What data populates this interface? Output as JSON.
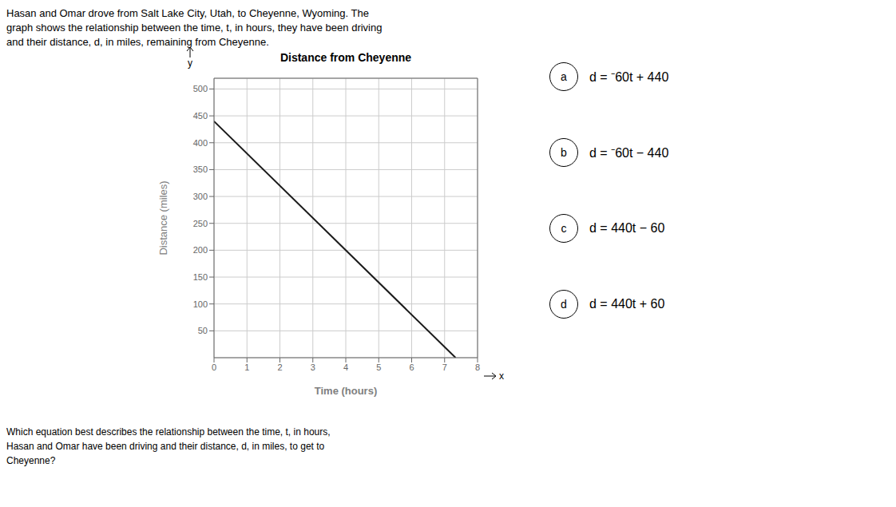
{
  "chart_data": {
    "type": "line",
    "title": "Distance from Cheyenne",
    "xlabel": "Time (hours)",
    "ylabel": "Distance (miles)",
    "x": [
      0,
      7.3333
    ],
    "values": [
      440,
      0
    ],
    "color": "#1a1a1a",
    "xlim": [
      0,
      8
    ],
    "ylim": [
      0,
      520
    ],
    "xticks": [
      0,
      1,
      2,
      3,
      4,
      5,
      6,
      7,
      8
    ],
    "yticks": [
      50,
      100,
      150,
      200,
      250,
      300,
      350,
      400,
      450,
      500
    ],
    "grid": true,
    "annotations": [
      "Hasan and Omar drove from Salt Lake City, Utah, to Cheyenne, Wyoming. The\ngraph shows the relationship between the time, t, in hours, they have been driving\nand their distance, d, in miles, remaining from Cheyenne.",
      "y",
      "x",
      "a",
      "d = ⁻60t + 440",
      "b",
      "d = ⁻60t − 440",
      "c",
      "d = 440t − 60",
      "d",
      "d = 440t + 60",
      "Which equation best describes the relationship between the time, t, in hours,\nHasan and Omar have been driving and their distance, d, in miles, to get to\nCheyenne?"
    ]
  }
}
